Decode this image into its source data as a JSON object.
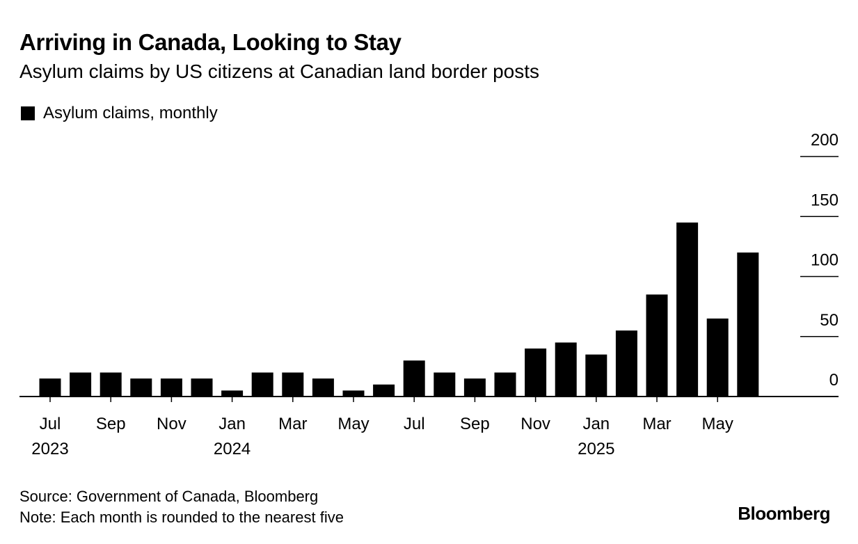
{
  "chart_data": {
    "type": "bar",
    "title": "Arriving in Canada, Looking to Stay",
    "subtitle": "Asylum claims by US citizens at Canadian land border posts",
    "legend": [
      {
        "name": "Asylum claims, monthly",
        "color": "#000000"
      }
    ],
    "legend_placement": "top-left",
    "categories": [
      "2023-07",
      "2023-08",
      "2023-09",
      "2023-10",
      "2023-11",
      "2023-12",
      "2024-01",
      "2024-02",
      "2024-03",
      "2024-04",
      "2024-05",
      "2024-06",
      "2024-07",
      "2024-08",
      "2024-09",
      "2024-10",
      "2024-11",
      "2024-12",
      "2025-01",
      "2025-02",
      "2025-03",
      "2025-04",
      "2025-05",
      "2025-06"
    ],
    "series": [
      {
        "name": "Asylum claims, monthly",
        "values": [
          15,
          20,
          20,
          15,
          15,
          15,
          5,
          20,
          20,
          15,
          5,
          10,
          30,
          20,
          15,
          20,
          40,
          45,
          35,
          55,
          85,
          145,
          65,
          120
        ]
      }
    ],
    "x_tick_labels": [
      {
        "index": 0,
        "month": "Jul",
        "year": "2023"
      },
      {
        "index": 2,
        "month": "Sep",
        "year": ""
      },
      {
        "index": 4,
        "month": "Nov",
        "year": ""
      },
      {
        "index": 6,
        "month": "Jan",
        "year": "2024"
      },
      {
        "index": 8,
        "month": "Mar",
        "year": ""
      },
      {
        "index": 10,
        "month": "May",
        "year": ""
      },
      {
        "index": 12,
        "month": "Jul",
        "year": ""
      },
      {
        "index": 14,
        "month": "Sep",
        "year": ""
      },
      {
        "index": 16,
        "month": "Nov",
        "year": ""
      },
      {
        "index": 18,
        "month": "Jan",
        "year": "2025"
      },
      {
        "index": 20,
        "month": "Mar",
        "year": ""
      },
      {
        "index": 22,
        "month": "May",
        "year": ""
      }
    ],
    "y_ticks": [
      0,
      50,
      100,
      150,
      200
    ],
    "y_tick_labels": [
      "0",
      "50",
      "100",
      "150",
      "200"
    ],
    "ylim": [
      0,
      200
    ],
    "y_axis_position": "right",
    "grid": false,
    "bar_color": "#000000"
  },
  "footer": {
    "source": "Source: Government of Canada, Bloomberg",
    "note": "Note: Each month is rounded to the nearest five"
  },
  "logo": "Bloomberg"
}
